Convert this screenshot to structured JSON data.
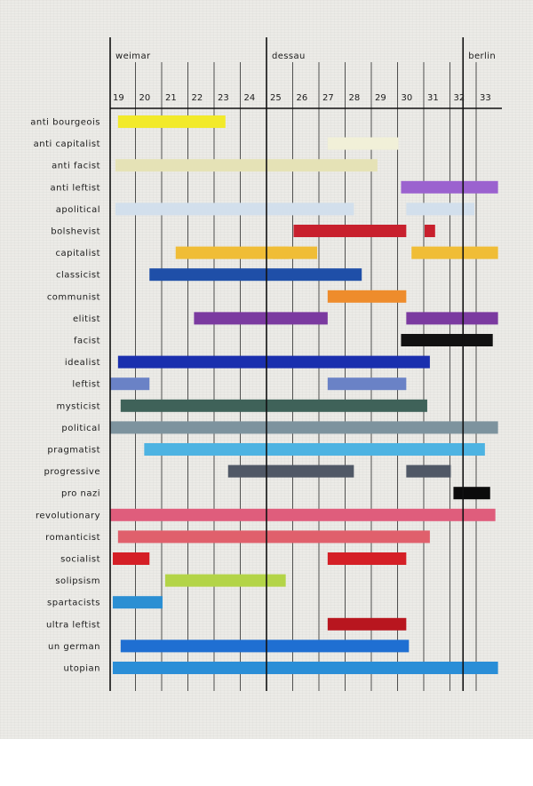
{
  "chart_data": {
    "type": "gantt",
    "title": "",
    "periods": [
      {
        "label": "weimar",
        "start": 19
      },
      {
        "label": "dessau",
        "start": 25
      },
      {
        "label": "berlin",
        "start": 32.5
      }
    ],
    "years": [
      19,
      20,
      21,
      22,
      23,
      24,
      25,
      26,
      27,
      28,
      29,
      30,
      31,
      32,
      33
    ],
    "year_labels": [
      "19",
      "20",
      "21",
      "22",
      "23",
      "24",
      "25",
      "26",
      "27",
      "28",
      "29",
      "30",
      "31",
      "32",
      "33"
    ],
    "xlim": [
      19,
      33.8
    ],
    "rows": [
      {
        "label": "anti bourgeois",
        "segments": [
          {
            "start": 19.3,
            "end": 23.4,
            "color": "#f2ea2a"
          }
        ]
      },
      {
        "label": "anti capitalist",
        "segments": [
          {
            "start": 27.3,
            "end": 30.0,
            "color": "#f1f0d8"
          }
        ]
      },
      {
        "label": "anti facist",
        "segments": [
          {
            "start": 19.2,
            "end": 29.2,
            "color": "#e5e2b6"
          }
        ]
      },
      {
        "label": "anti leftist",
        "segments": [
          {
            "start": 30.1,
            "end": 33.8,
            "color": "#9b62cf"
          }
        ]
      },
      {
        "label": "apolitical",
        "segments": [
          {
            "start": 19.2,
            "end": 28.3,
            "color": "#d2dfec"
          },
          {
            "start": 30.3,
            "end": 32.9,
            "color": "#d2dfec"
          }
        ]
      },
      {
        "label": "bolshevist",
        "segments": [
          {
            "start": 26.0,
            "end": 30.3,
            "color": "#c8202d"
          },
          {
            "start": 31.0,
            "end": 31.4,
            "color": "#c8202d"
          }
        ]
      },
      {
        "label": "capitalist",
        "segments": [
          {
            "start": 21.5,
            "end": 25.8,
            "color": "#f0bd36"
          },
          {
            "start": 25.2,
            "end": 26.9,
            "color": "#f0bd36"
          },
          {
            "start": 30.5,
            "end": 33.8,
            "color": "#f0bd36"
          }
        ]
      },
      {
        "label": "classicist",
        "segments": [
          {
            "start": 20.5,
            "end": 28.6,
            "color": "#1f4fa8"
          }
        ]
      },
      {
        "label": "communist",
        "segments": [
          {
            "start": 27.3,
            "end": 30.3,
            "color": "#ee8c2c"
          }
        ]
      },
      {
        "label": "elitist",
        "segments": [
          {
            "start": 22.2,
            "end": 27.3,
            "color": "#7b3aa0"
          },
          {
            "start": 30.3,
            "end": 33.8,
            "color": "#7b3aa0"
          }
        ]
      },
      {
        "label": "facist",
        "segments": [
          {
            "start": 30.1,
            "end": 33.6,
            "color": "#111111"
          }
        ]
      },
      {
        "label": "idealist",
        "segments": [
          {
            "start": 19.3,
            "end": 31.2,
            "color": "#1a2fae"
          }
        ]
      },
      {
        "label": "leftist",
        "segments": [
          {
            "start": 19.0,
            "end": 20.5,
            "color": "#6a82c6"
          },
          {
            "start": 27.3,
            "end": 30.3,
            "color": "#6a82c6"
          }
        ]
      },
      {
        "label": "mysticist",
        "segments": [
          {
            "start": 19.4,
            "end": 31.1,
            "color": "#3f6259"
          }
        ]
      },
      {
        "label": "political",
        "segments": [
          {
            "start": 19.0,
            "end": 33.8,
            "color": "#7d939e"
          }
        ]
      },
      {
        "label": "pragmatist",
        "segments": [
          {
            "start": 20.3,
            "end": 33.3,
            "color": "#4db3e2"
          }
        ]
      },
      {
        "label": "progressive",
        "segments": [
          {
            "start": 23.5,
            "end": 28.3,
            "color": "#505866"
          },
          {
            "start": 30.3,
            "end": 32.0,
            "color": "#505866"
          }
        ]
      },
      {
        "label": "pro nazi",
        "segments": [
          {
            "start": 32.1,
            "end": 33.5,
            "color": "#0b0b0b"
          }
        ]
      },
      {
        "label": "revolutionary",
        "segments": [
          {
            "start": 19.0,
            "end": 33.7,
            "color": "#df5d7c"
          }
        ]
      },
      {
        "label": "romanticist",
        "segments": [
          {
            "start": 19.3,
            "end": 31.2,
            "color": "#e0606c"
          }
        ]
      },
      {
        "label": "socialist",
        "segments": [
          {
            "start": 19.1,
            "end": 20.5,
            "color": "#d51f26"
          },
          {
            "start": 27.3,
            "end": 30.3,
            "color": "#d51f26"
          }
        ]
      },
      {
        "label": "solipsism",
        "segments": [
          {
            "start": 21.1,
            "end": 25.7,
            "color": "#b3d447"
          }
        ]
      },
      {
        "label": "spartacists",
        "segments": [
          {
            "start": 19.1,
            "end": 21.0,
            "color": "#2b8fd3"
          }
        ]
      },
      {
        "label": "ultra leftist",
        "segments": [
          {
            "start": 27.3,
            "end": 30.3,
            "color": "#b8161f"
          }
        ]
      },
      {
        "label": "un german",
        "segments": [
          {
            "start": 19.4,
            "end": 30.4,
            "color": "#1f6fd2"
          }
        ]
      },
      {
        "label": "utopian",
        "segments": [
          {
            "start": 19.1,
            "end": 33.8,
            "color": "#2a8ed7"
          }
        ]
      }
    ]
  }
}
